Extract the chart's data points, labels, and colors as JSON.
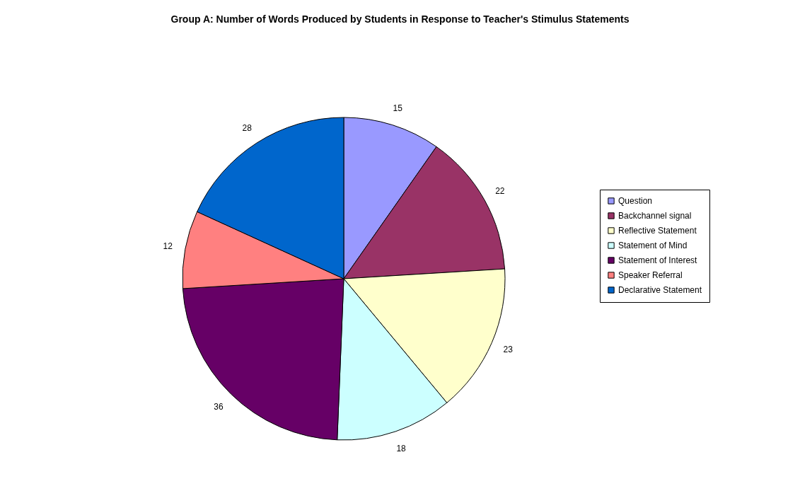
{
  "chart_data": {
    "type": "pie",
    "title": "Group A: Number of Words Produced by Students in Response to Teacher's Stimulus Statements",
    "categories": [
      "Question",
      "Backchannel signal",
      "Reflective Statement",
      "Statement of Mind",
      "Statement of Interest",
      "Speaker Referral",
      "Declarative Statement"
    ],
    "values": [
      15,
      22,
      23,
      18,
      36,
      12,
      28
    ],
    "colors": [
      "#9999ff",
      "#993366",
      "#ffffcc",
      "#ccffff",
      "#660066",
      "#ff8080",
      "#0066cc"
    ],
    "data_labels": true,
    "legend": "right"
  }
}
